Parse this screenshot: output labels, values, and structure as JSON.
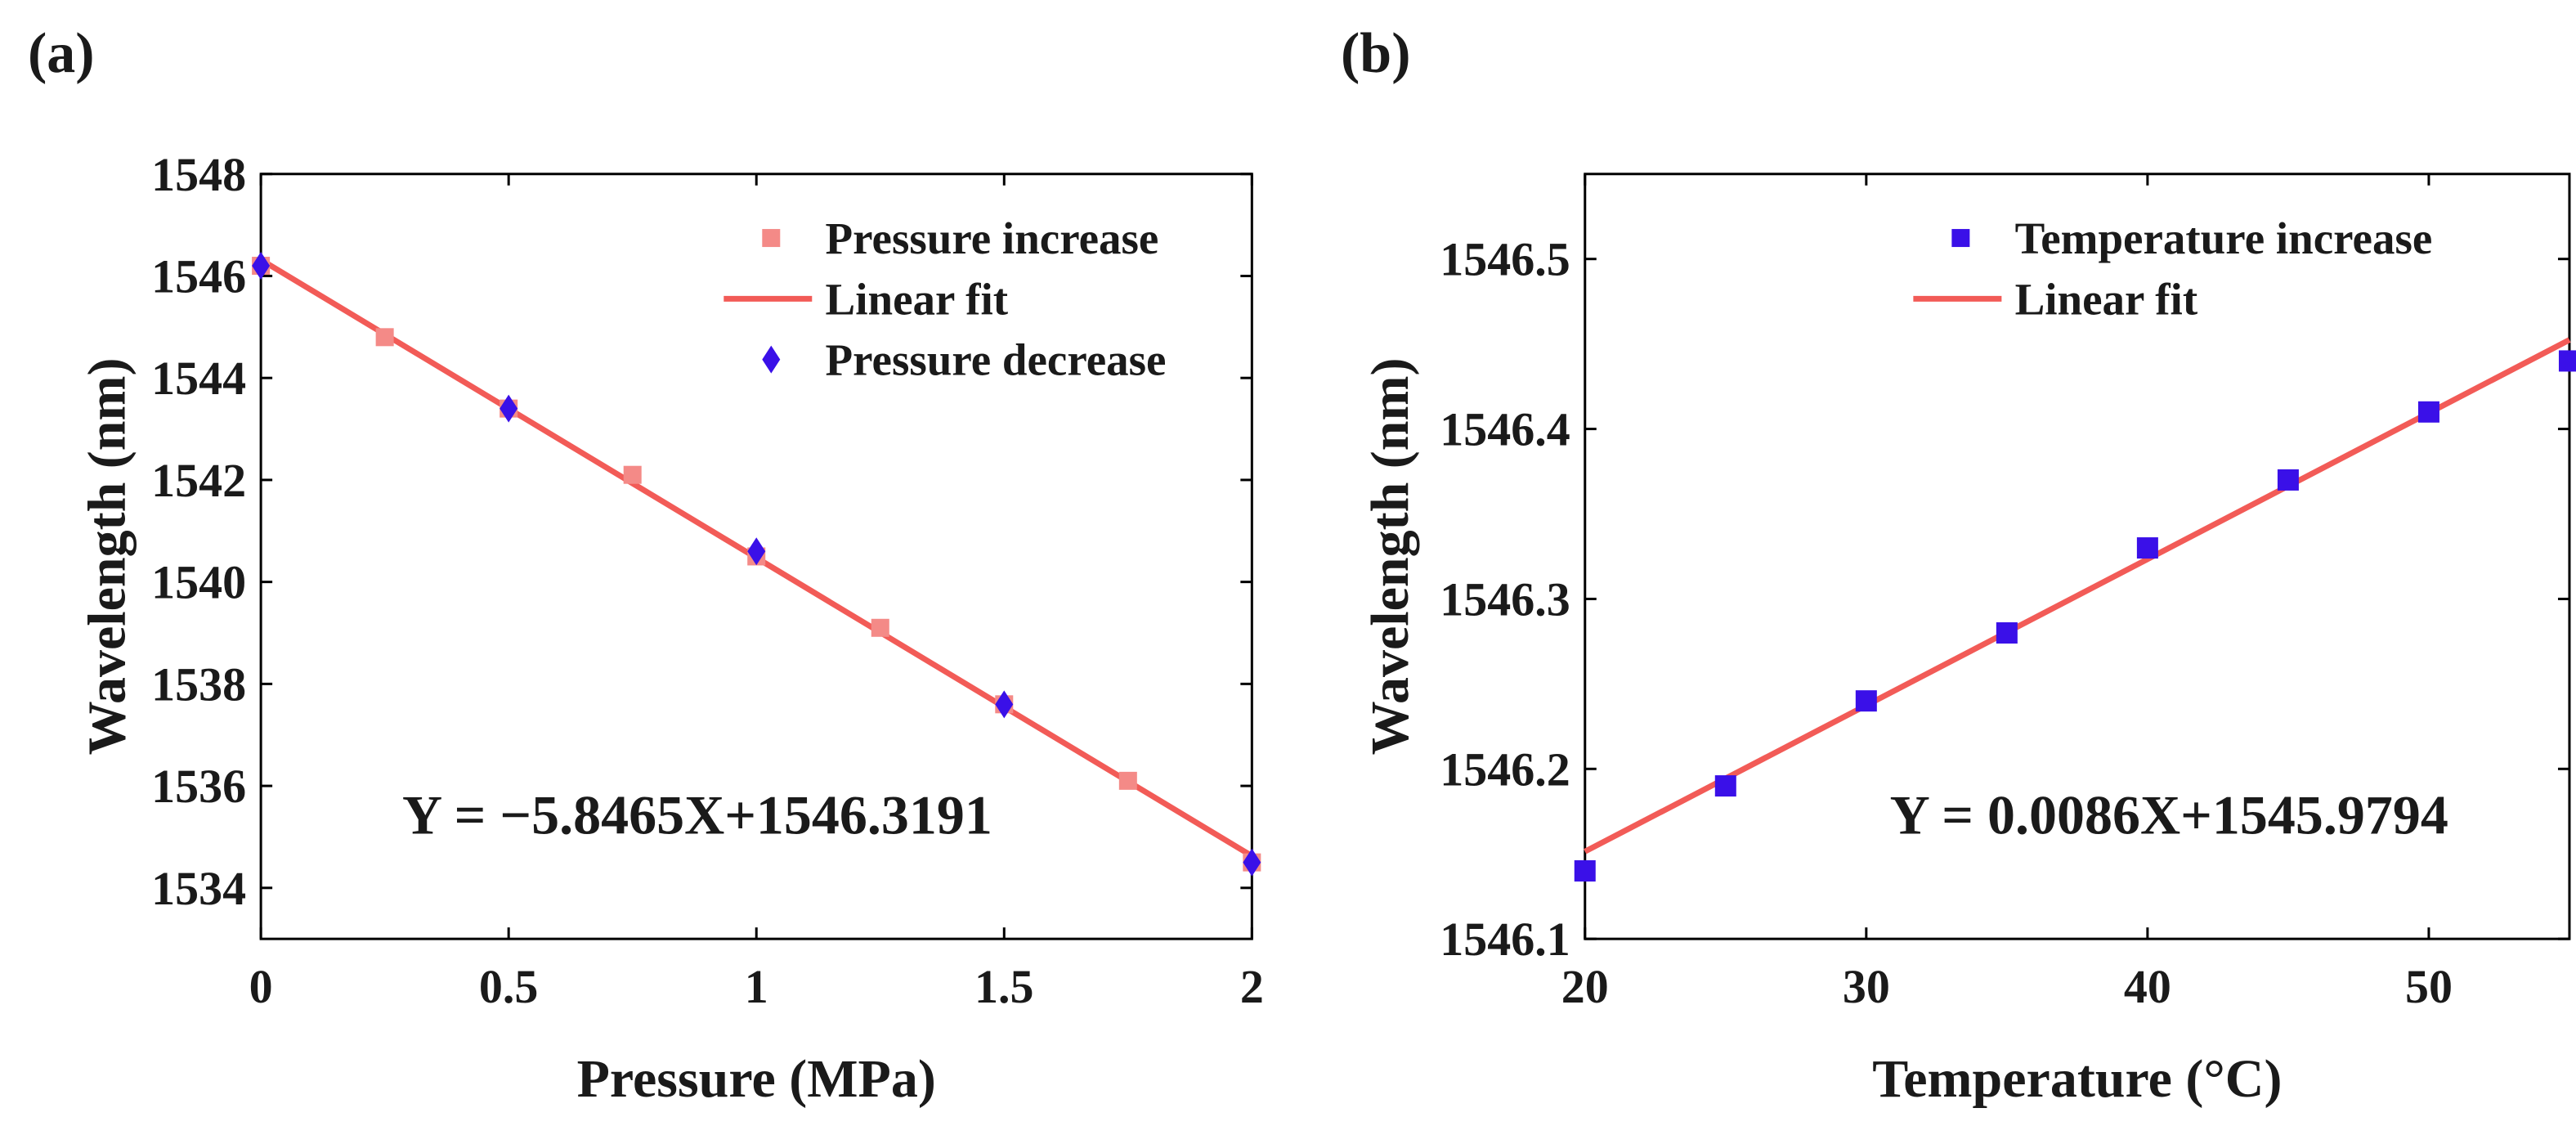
{
  "figure": {
    "panel_a_label": "(a)",
    "panel_b_label": "(b)"
  },
  "colors": {
    "increase_marker_a": "#f48a87",
    "decrease_marker_a": "#3a10e8",
    "fit_line": "#f25b57",
    "increase_marker_b": "#3a10e8",
    "axis": "#000000"
  },
  "chart_data": [
    {
      "panel": "(a)",
      "type": "scatter",
      "title": "",
      "xlabel": "Pressure (MPa)",
      "ylabel": "Wavelength (nm)",
      "xlim": [
        0,
        2
      ],
      "ylim": [
        1533,
        1548
      ],
      "xticks": [
        0,
        0.5,
        1,
        1.5,
        2
      ],
      "xtick_labels": [
        "0",
        "0.5",
        "1",
        "1.5",
        "2"
      ],
      "yticks": [
        1534,
        1536,
        1538,
        1540,
        1542,
        1544,
        1546,
        1548
      ],
      "ytick_labels": [
        "1534",
        "1536",
        "1538",
        "1540",
        "1542",
        "1544",
        "1546",
        "1548"
      ],
      "grid": false,
      "legend_position": "top-right",
      "series": [
        {
          "name": "Pressure increase",
          "marker": "square",
          "color": "#f48a87",
          "x": [
            0,
            0.25,
            0.5,
            0.75,
            1,
            1.25,
            1.5,
            1.75,
            2
          ],
          "y": [
            1546.2,
            1544.8,
            1543.4,
            1542.1,
            1540.5,
            1539.1,
            1537.6,
            1536.1,
            1534.5
          ]
        },
        {
          "name": "Linear fit",
          "marker": "line",
          "color": "#f25b57",
          "slope": -5.8465,
          "intercept": 1546.3191,
          "x_range": [
            0,
            2
          ]
        },
        {
          "name": "Pressure decrease",
          "marker": "diamond",
          "color": "#3a10e8",
          "x": [
            0,
            0.5,
            1,
            1.5,
            2
          ],
          "y": [
            1546.2,
            1543.4,
            1540.6,
            1537.6,
            1534.5
          ]
        }
      ],
      "annotation": "Y = −5.8465X+1546.3191"
    },
    {
      "panel": "(b)",
      "type": "scatter",
      "title": "",
      "xlabel": "Temperature (°C)",
      "ylabel": "Wavelength (nm)",
      "xlim": [
        20,
        55
      ],
      "ylim": [
        1546.1,
        1546.55
      ],
      "xticks": [
        20,
        30,
        40,
        50
      ],
      "xtick_labels": [
        "20",
        "30",
        "40",
        "50"
      ],
      "yticks": [
        1546.1,
        1546.2,
        1546.3,
        1546.4,
        1546.5
      ],
      "ytick_labels": [
        "1546.1",
        "1546.2",
        "1546.3",
        "1546.4",
        "1546.5"
      ],
      "grid": false,
      "legend_position": "top-right",
      "series": [
        {
          "name": "Temperature increase",
          "marker": "square",
          "color": "#3a10e8",
          "x": [
            20,
            25,
            30,
            35,
            40,
            45,
            50,
            55
          ],
          "y": [
            1546.14,
            1546.19,
            1546.24,
            1546.28,
            1546.33,
            1546.37,
            1546.41,
            1546.44
          ]
        },
        {
          "name": "Linear fit",
          "marker": "line",
          "color": "#f25b57",
          "slope": 0.0086,
          "intercept": 1545.9794,
          "x_range": [
            20,
            55
          ]
        }
      ],
      "annotation": "Y = 0.0086X+1545.9794"
    }
  ]
}
